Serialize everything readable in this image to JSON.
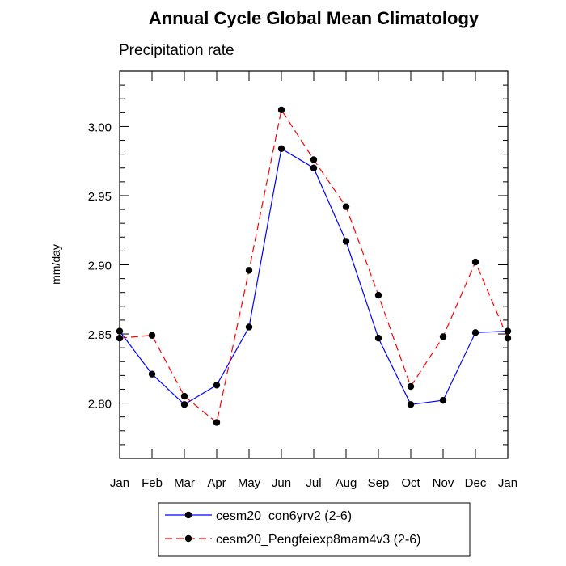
{
  "chart_data": {
    "type": "line",
    "title": "Annual Cycle Global Mean Climatology",
    "subtitle": "Precipitation rate",
    "xlabel": "",
    "ylabel": "mm/day",
    "categories": [
      "Jan",
      "Feb",
      "Mar",
      "Apr",
      "May",
      "Jun",
      "Jul",
      "Aug",
      "Sep",
      "Oct",
      "Nov",
      "Dec",
      "Jan"
    ],
    "ylim": [
      2.76,
      3.04
    ],
    "yticks": [
      2.8,
      2.85,
      2.9,
      2.95,
      3.0
    ],
    "ytick_labels": [
      "2.80",
      "2.85",
      "2.90",
      "2.95",
      "3.00"
    ],
    "grid": false,
    "legend_position": "bottom",
    "series": [
      {
        "name": "cesm20_con6yrv2 (2-6)",
        "color": "#0000ff",
        "dash": "solid",
        "marker": "circle",
        "values": [
          2.852,
          2.821,
          2.799,
          2.813,
          2.855,
          2.984,
          2.97,
          2.917,
          2.847,
          2.799,
          2.802,
          2.851,
          2.852
        ]
      },
      {
        "name": "cesm20_Pengfeiexp8mam4v3 (2-6)",
        "color": "#ff0000",
        "dash": "dashed",
        "marker": "circle",
        "values": [
          2.847,
          2.849,
          2.805,
          2.786,
          2.896,
          3.012,
          2.976,
          2.942,
          2.878,
          2.812,
          2.848,
          2.902,
          2.847
        ]
      }
    ]
  }
}
